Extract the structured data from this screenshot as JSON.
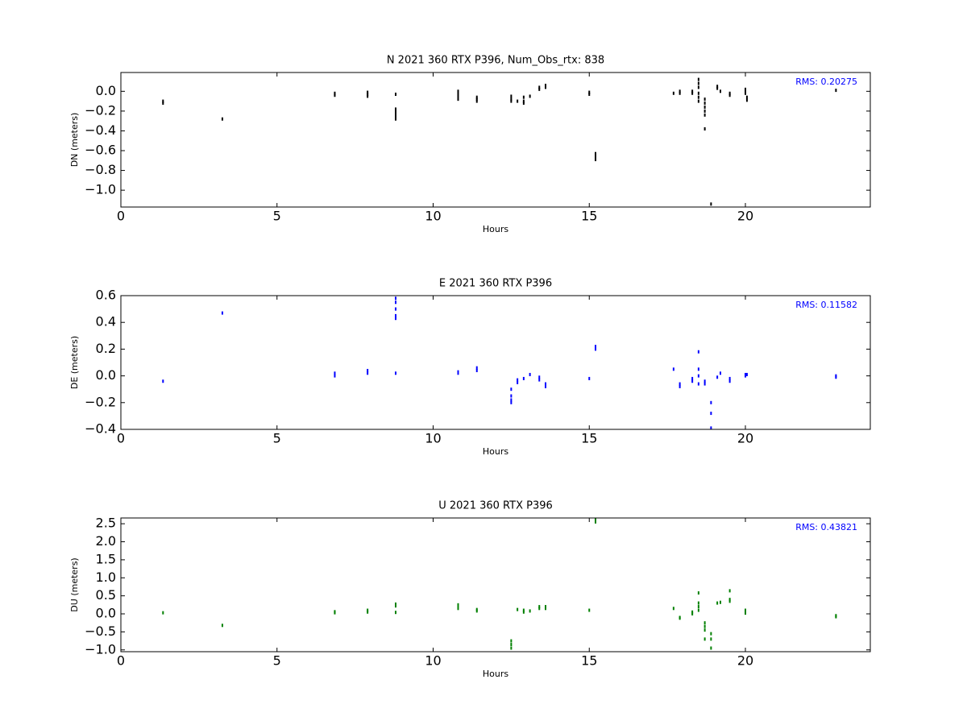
{
  "chart_data": [
    {
      "type": "scatter",
      "title": "N 2021 360 RTX  P396, Num_Obs_rtx: 838",
      "xlabel": "Hours",
      "ylabel": "DN (meters)",
      "annotation": "RMS:  0.20275",
      "annotation_color": "#0000ff",
      "color": "#000000",
      "xlim": [
        0,
        24
      ],
      "xticks": [
        0,
        5,
        10,
        15,
        20
      ],
      "ylim": [
        -1.17,
        0.19
      ],
      "yticks": [
        {
          "value": -1.0,
          "label": "−1.0"
        },
        {
          "value": -0.8,
          "label": "−0.8"
        },
        {
          "value": -0.6,
          "label": "−0.6"
        },
        {
          "value": -0.4,
          "label": "−0.4"
        },
        {
          "value": -0.2,
          "label": "−0.2"
        },
        {
          "value": 0,
          "label": "0.0"
        }
      ],
      "x": [
        1.35,
        1.35,
        3.25,
        6.85,
        6.85,
        7.9,
        7.9,
        7.9,
        8.8,
        8.8,
        8.8,
        8.8,
        8.8,
        8.8,
        10.8,
        10.8,
        10.8,
        10.8,
        10.8,
        11.4,
        11.4,
        11.4,
        12.5,
        12.5,
        12.5,
        12.7,
        12.9,
        12.9,
        12.9,
        13.1,
        13.4,
        13.4,
        13.6,
        13.6,
        15.0,
        15.0,
        15.2,
        15.2,
        15.2,
        17.7,
        17.9,
        17.9,
        18.3,
        18.3,
        18.5,
        18.5,
        18.5,
        18.5,
        18.5,
        18.5,
        18.7,
        18.7,
        18.7,
        18.7,
        18.7,
        18.7,
        18.9,
        19.1,
        19.1,
        19.2,
        19.5,
        19.5,
        20.0,
        20.0,
        20.0,
        20.05,
        20.05,
        22.9
      ],
      "values": [
        -0.1,
        -0.12,
        -0.28,
        -0.02,
        -0.04,
        -0.01,
        -0.03,
        -0.05,
        -0.03,
        -0.18,
        -0.2,
        -0.22,
        -0.25,
        -0.28,
        0.0,
        -0.02,
        -0.04,
        -0.06,
        -0.08,
        -0.06,
        -0.08,
        -0.1,
        -0.05,
        -0.08,
        -0.1,
        -0.1,
        -0.06,
        -0.1,
        -0.12,
        -0.05,
        0.02,
        0.04,
        0.04,
        0.06,
        -0.01,
        -0.03,
        -0.63,
        -0.66,
        -0.69,
        -0.02,
        0.0,
        -0.02,
        0.0,
        -0.02,
        0.12,
        0.08,
        0.04,
        -0.02,
        -0.06,
        -0.1,
        -0.08,
        -0.12,
        -0.16,
        -0.2,
        -0.24,
        -0.38,
        -1.14,
        0.03,
        0.05,
        0.0,
        -0.02,
        -0.04,
        0.02,
        0.0,
        -0.02,
        -0.06,
        -0.09,
        0.01
      ]
    },
    {
      "type": "scatter",
      "title": "E 2021 360 RTX  P396",
      "xlabel": "Hours",
      "ylabel": "DE (meters)",
      "annotation": "RMS:  0.11582",
      "annotation_color": "#0000ff",
      "color": "#0000ff",
      "xlim": [
        0,
        24
      ],
      "xticks": [
        0,
        5,
        10,
        15,
        20
      ],
      "ylim": [
        -0.4,
        0.6
      ],
      "yticks": [
        {
          "value": -0.4,
          "label": "−0.4"
        },
        {
          "value": -0.2,
          "label": "−0.2"
        },
        {
          "value": 0,
          "label": "0.0"
        },
        0.2,
        0.4,
        0.6
      ],
      "x": [
        1.35,
        3.25,
        6.85,
        6.85,
        7.9,
        7.9,
        8.8,
        8.8,
        8.8,
        8.8,
        8.8,
        8.8,
        10.8,
        10.8,
        11.4,
        11.4,
        12.5,
        12.5,
        12.5,
        12.5,
        12.7,
        12.7,
        12.9,
        13.1,
        13.4,
        13.4,
        13.6,
        13.6,
        15.0,
        15.2,
        15.2,
        17.7,
        17.9,
        17.9,
        18.3,
        18.3,
        18.5,
        18.5,
        18.5,
        18.5,
        18.7,
        18.7,
        18.9,
        18.9,
        18.9,
        19.1,
        19.2,
        19.5,
        19.5,
        20.0,
        20.0,
        20.05,
        22.9,
        22.9
      ],
      "values": [
        -0.04,
        0.47,
        0.0,
        0.02,
        0.02,
        0.04,
        0.58,
        0.55,
        0.5,
        0.45,
        0.43,
        0.02,
        0.02,
        0.03,
        0.04,
        0.06,
        -0.1,
        -0.15,
        -0.18,
        -0.2,
        -0.03,
        -0.05,
        -0.02,
        0.01,
        -0.01,
        -0.03,
        -0.06,
        -0.08,
        -0.02,
        0.2,
        0.22,
        0.05,
        -0.06,
        -0.08,
        -0.02,
        -0.04,
        0.18,
        0.05,
        0.0,
        -0.06,
        -0.04,
        -0.06,
        -0.2,
        -0.28,
        -0.39,
        -0.01,
        0.02,
        -0.02,
        -0.04,
        0.01,
        0.0,
        0.01,
        0.0,
        -0.01
      ]
    },
    {
      "type": "scatter",
      "title": "U 2021 360 RTX  P396",
      "xlabel": "Hours",
      "ylabel": "DU (meters)",
      "annotation": "RMS:  0.43821",
      "annotation_color": "#0000ff",
      "color": "#008000",
      "xlim": [
        0,
        24
      ],
      "xticks": [
        0,
        5,
        10,
        15,
        20
      ],
      "ylim": [
        -1.05,
        2.66
      ],
      "yticks": [
        {
          "value": -1.0,
          "label": "−1.0"
        },
        {
          "value": -0.5,
          "label": "−0.5"
        },
        {
          "value": 0,
          "label": "0.0"
        },
        0.5,
        {
          "value": 1.0,
          "label": "1.0"
        },
        1.5,
        {
          "value": 2.0,
          "label": "2.0"
        },
        2.5
      ],
      "x": [
        1.35,
        3.25,
        6.85,
        6.85,
        7.9,
        7.9,
        8.8,
        8.8,
        8.8,
        10.8,
        10.8,
        10.8,
        11.4,
        11.4,
        12.5,
        12.5,
        12.5,
        12.7,
        12.9,
        12.9,
        13.1,
        13.4,
        13.4,
        13.6,
        13.6,
        15.0,
        15.2,
        15.2,
        17.7,
        17.9,
        17.9,
        18.3,
        18.3,
        18.5,
        18.5,
        18.5,
        18.5,
        18.7,
        18.7,
        18.7,
        18.7,
        18.9,
        18.9,
        18.9,
        19.1,
        19.2,
        19.5,
        19.5,
        19.5,
        20.0,
        20.0,
        20.0,
        22.9,
        22.9
      ],
      "values": [
        0.03,
        -0.32,
        0.03,
        0.06,
        0.05,
        0.1,
        0.22,
        0.27,
        0.04,
        0.15,
        0.2,
        0.25,
        0.08,
        0.12,
        -0.75,
        -0.85,
        -0.95,
        0.12,
        0.05,
        0.1,
        0.08,
        0.15,
        0.2,
        0.15,
        0.2,
        0.1,
        2.55,
        2.62,
        0.15,
        -0.1,
        -0.12,
        0.0,
        0.05,
        0.58,
        0.3,
        0.2,
        0.1,
        -0.25,
        -0.35,
        -0.45,
        -0.7,
        -0.55,
        -0.7,
        -0.95,
        0.3,
        0.32,
        0.64,
        0.4,
        0.35,
        0.1,
        0.05,
        0.02,
        -0.05,
        -0.08
      ]
    }
  ]
}
